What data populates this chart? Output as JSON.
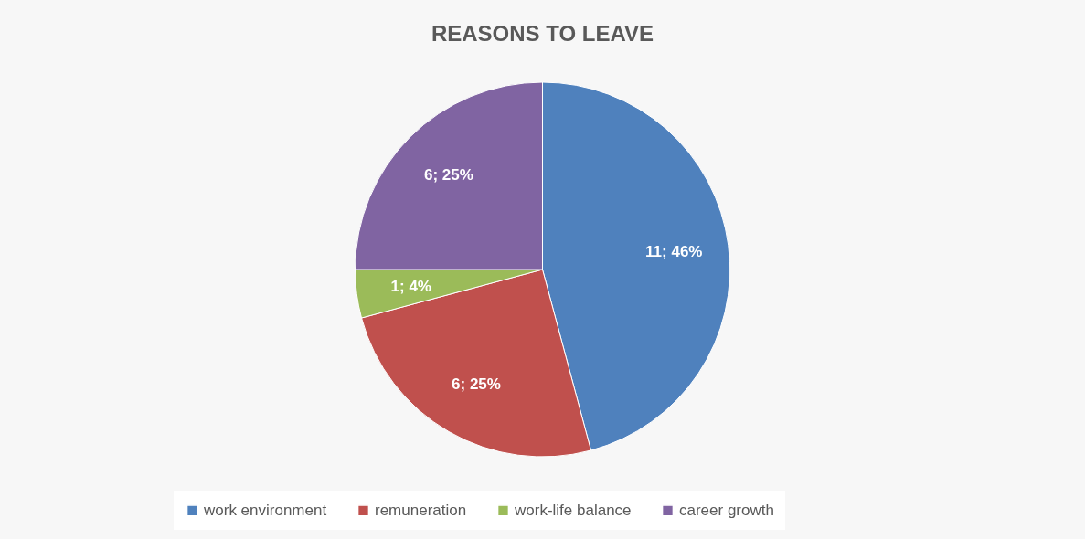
{
  "chart_data": {
    "type": "pie",
    "title": "REASONS TO LEAVE",
    "categories": [
      "work environment",
      "remuneration",
      "work-life balance",
      "career growth"
    ],
    "values": [
      11,
      6,
      1,
      6
    ],
    "colors": [
      "#4f81bd",
      "#c0504d",
      "#9bbb59",
      "#8064a2"
    ],
    "value_labels": [
      "11; 46%",
      "6; 25%",
      "1; 4%",
      "6; 25%"
    ],
    "legend": "bottom"
  }
}
